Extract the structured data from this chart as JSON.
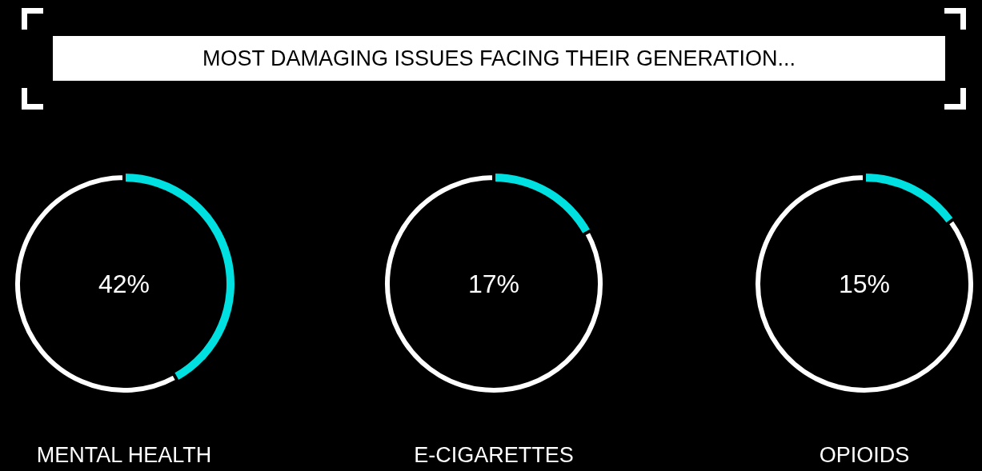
{
  "chart_data": [
    {
      "type": "other",
      "title": "MOST DAMAGING ISSUES FACING THEIR GENERATION..."
    },
    {
      "type": "donut",
      "xlabel": "MENTAL HEALTH",
      "categories": [
        null,
        null
      ],
      "values": [
        42,
        58
      ],
      "colors": [
        "#00e0e0",
        "#ffffff"
      ],
      "annotations": [
        "42%"
      ]
    },
    {
      "type": "donut",
      "xlabel": "E-CIGARETTES",
      "categories": [
        null,
        null
      ],
      "values": [
        17,
        83
      ],
      "colors": [
        "#00e0e0",
        "#ffffff"
      ],
      "annotations": [
        "17%"
      ]
    },
    {
      "type": "donut",
      "xlabel": "OPIOIDS",
      "categories": [
        null,
        null
      ],
      "values": [
        15,
        85
      ],
      "colors": [
        "#00e0e0",
        "#ffffff"
      ],
      "annotations": [
        "15%"
      ]
    }
  ]
}
